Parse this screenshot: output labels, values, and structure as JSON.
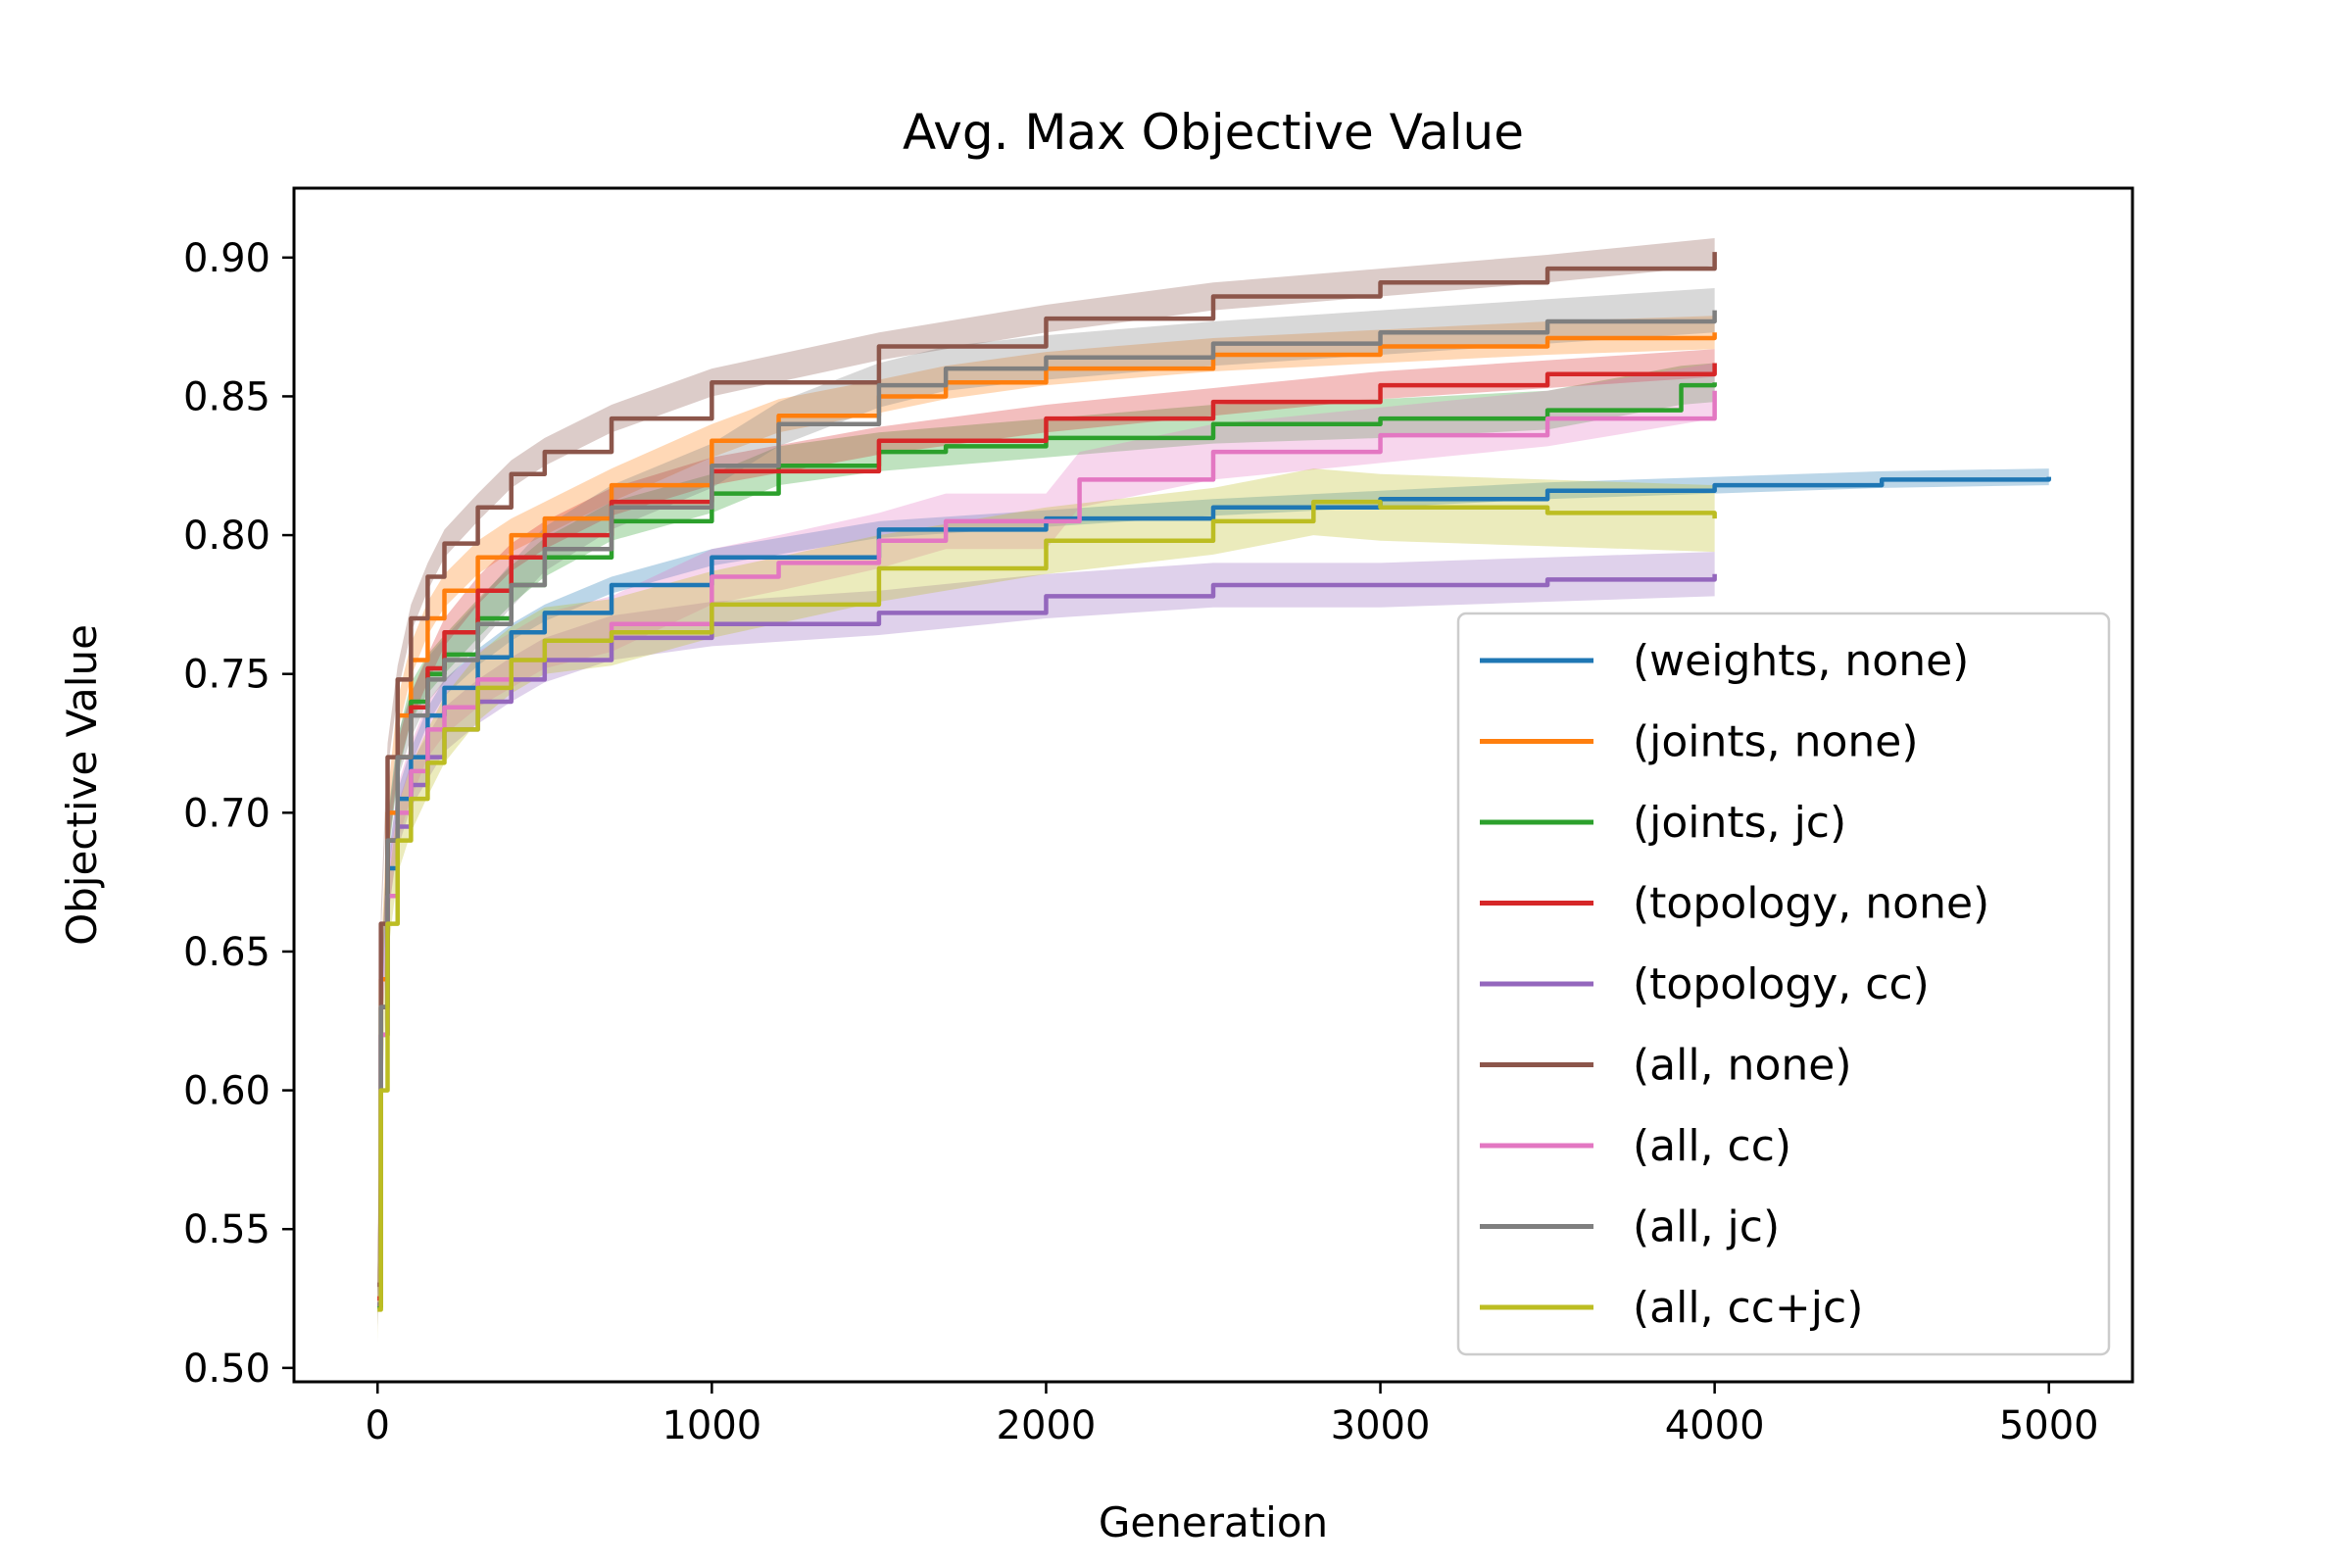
{
  "chart_data": {
    "type": "line",
    "title": "Avg. Max Objective Value",
    "xlabel": "Generation",
    "ylabel": "Objective Value",
    "xlim": [
      -250,
      5250
    ],
    "ylim": [
      0.495,
      0.925
    ],
    "xticks": [
      0,
      1000,
      2000,
      3000,
      4000,
      5000
    ],
    "xtick_labels": [
      "0",
      "1000",
      "2000",
      "3000",
      "4000",
      "5000"
    ],
    "yticks": [
      0.5,
      0.55,
      0.6,
      0.65,
      0.7,
      0.75,
      0.8,
      0.85,
      0.9
    ],
    "ytick_labels": [
      "0.50",
      "0.55",
      "0.60",
      "0.65",
      "0.70",
      "0.75",
      "0.80",
      "0.85",
      "0.90"
    ],
    "grid": false,
    "legend_position": "lower-right",
    "shaded_band": "std",
    "series": [
      {
        "name": "(weights, none)",
        "color": "#1f77b4",
        "x": [
          0,
          10,
          30,
          60,
          100,
          150,
          200,
          300,
          400,
          500,
          700,
          1000,
          1500,
          2000,
          2500,
          3000,
          3500,
          4000,
          4500,
          5000
        ],
        "y": [
          0.522,
          0.62,
          0.68,
          0.705,
          0.72,
          0.735,
          0.745,
          0.756,
          0.765,
          0.772,
          0.782,
          0.792,
          0.802,
          0.806,
          0.81,
          0.813,
          0.816,
          0.818,
          0.82,
          0.821
        ],
        "band": 0.003
      },
      {
        "name": "(joints, none)",
        "color": "#ff7f0e",
        "x": [
          0,
          10,
          30,
          60,
          100,
          150,
          200,
          300,
          400,
          500,
          700,
          1000,
          1200,
          1500,
          1700,
          2000,
          2500,
          3000,
          3500,
          4000
        ],
        "y": [
          0.525,
          0.64,
          0.7,
          0.735,
          0.755,
          0.77,
          0.78,
          0.792,
          0.8,
          0.806,
          0.818,
          0.834,
          0.843,
          0.85,
          0.855,
          0.86,
          0.865,
          0.868,
          0.871,
          0.873
        ],
        "band": 0.006
      },
      {
        "name": "(joints, jc)",
        "color": "#2ca02c",
        "x": [
          0,
          10,
          30,
          60,
          100,
          150,
          200,
          300,
          400,
          500,
          700,
          1000,
          1200,
          1500,
          1700,
          2000,
          2500,
          3000,
          3500,
          3900,
          4000
        ],
        "y": [
          0.522,
          0.63,
          0.69,
          0.72,
          0.74,
          0.75,
          0.757,
          0.77,
          0.782,
          0.792,
          0.805,
          0.815,
          0.825,
          0.83,
          0.832,
          0.835,
          0.84,
          0.842,
          0.845,
          0.854,
          0.855
        ],
        "band": 0.007
      },
      {
        "name": "(topology, none)",
        "color": "#d62728",
        "x": [
          0,
          10,
          30,
          60,
          100,
          150,
          200,
          300,
          400,
          500,
          700,
          1000,
          1500,
          2000,
          2500,
          3000,
          3500,
          4000
        ],
        "y": [
          0.525,
          0.63,
          0.69,
          0.72,
          0.738,
          0.752,
          0.765,
          0.78,
          0.792,
          0.8,
          0.812,
          0.823,
          0.834,
          0.842,
          0.848,
          0.854,
          0.858,
          0.862
        ],
        "band": 0.005
      },
      {
        "name": "(topology, cc)",
        "color": "#9467bd",
        "x": [
          0,
          10,
          30,
          60,
          100,
          150,
          200,
          300,
          400,
          500,
          700,
          1000,
          1500,
          2000,
          2500,
          3000,
          3500,
          4000
        ],
        "y": [
          0.523,
          0.62,
          0.67,
          0.695,
          0.71,
          0.72,
          0.73,
          0.74,
          0.748,
          0.755,
          0.763,
          0.768,
          0.772,
          0.778,
          0.782,
          0.782,
          0.784,
          0.786
        ],
        "band": 0.008
      },
      {
        "name": "(all, none)",
        "color": "#8c564b",
        "x": [
          0,
          10,
          30,
          60,
          100,
          150,
          200,
          300,
          400,
          500,
          700,
          1000,
          1500,
          2000,
          2500,
          3000,
          3500,
          4000
        ],
        "y": [
          0.53,
          0.66,
          0.72,
          0.748,
          0.77,
          0.785,
          0.797,
          0.81,
          0.822,
          0.83,
          0.842,
          0.855,
          0.868,
          0.878,
          0.886,
          0.891,
          0.896,
          0.902
        ],
        "band": 0.005
      },
      {
        "name": "(all, cc)",
        "color": "#e377c2",
        "x": [
          0,
          10,
          30,
          60,
          100,
          150,
          200,
          300,
          400,
          500,
          700,
          1000,
          1200,
          1500,
          1700,
          2000,
          2100,
          2500,
          3000,
          3500,
          4000
        ],
        "y": [
          0.523,
          0.62,
          0.67,
          0.7,
          0.715,
          0.73,
          0.738,
          0.748,
          0.755,
          0.762,
          0.768,
          0.785,
          0.79,
          0.798,
          0.805,
          0.805,
          0.82,
          0.83,
          0.836,
          0.842,
          0.852
        ],
        "band": 0.01
      },
      {
        "name": "(all, jc)",
        "color": "#7f7f7f",
        "x": [
          0,
          10,
          30,
          60,
          100,
          150,
          200,
          300,
          400,
          500,
          700,
          1000,
          1200,
          1500,
          1700,
          2000,
          2500,
          3000,
          3500,
          4000
        ],
        "y": [
          0.523,
          0.63,
          0.69,
          0.72,
          0.735,
          0.748,
          0.755,
          0.768,
          0.782,
          0.795,
          0.81,
          0.825,
          0.84,
          0.854,
          0.86,
          0.864,
          0.869,
          0.873,
          0.877,
          0.881
        ],
        "band": 0.008
      },
      {
        "name": "(all, cc+jc)",
        "color": "#bcbd22",
        "x": [
          0,
          10,
          30,
          60,
          100,
          150,
          200,
          300,
          400,
          500,
          700,
          1000,
          1500,
          2000,
          2500,
          2800,
          3000,
          3500,
          4000
        ],
        "y": [
          0.521,
          0.6,
          0.66,
          0.69,
          0.705,
          0.718,
          0.73,
          0.745,
          0.755,
          0.762,
          0.765,
          0.775,
          0.788,
          0.798,
          0.805,
          0.812,
          0.81,
          0.808,
          0.806
        ],
        "band": 0.012
      }
    ]
  }
}
